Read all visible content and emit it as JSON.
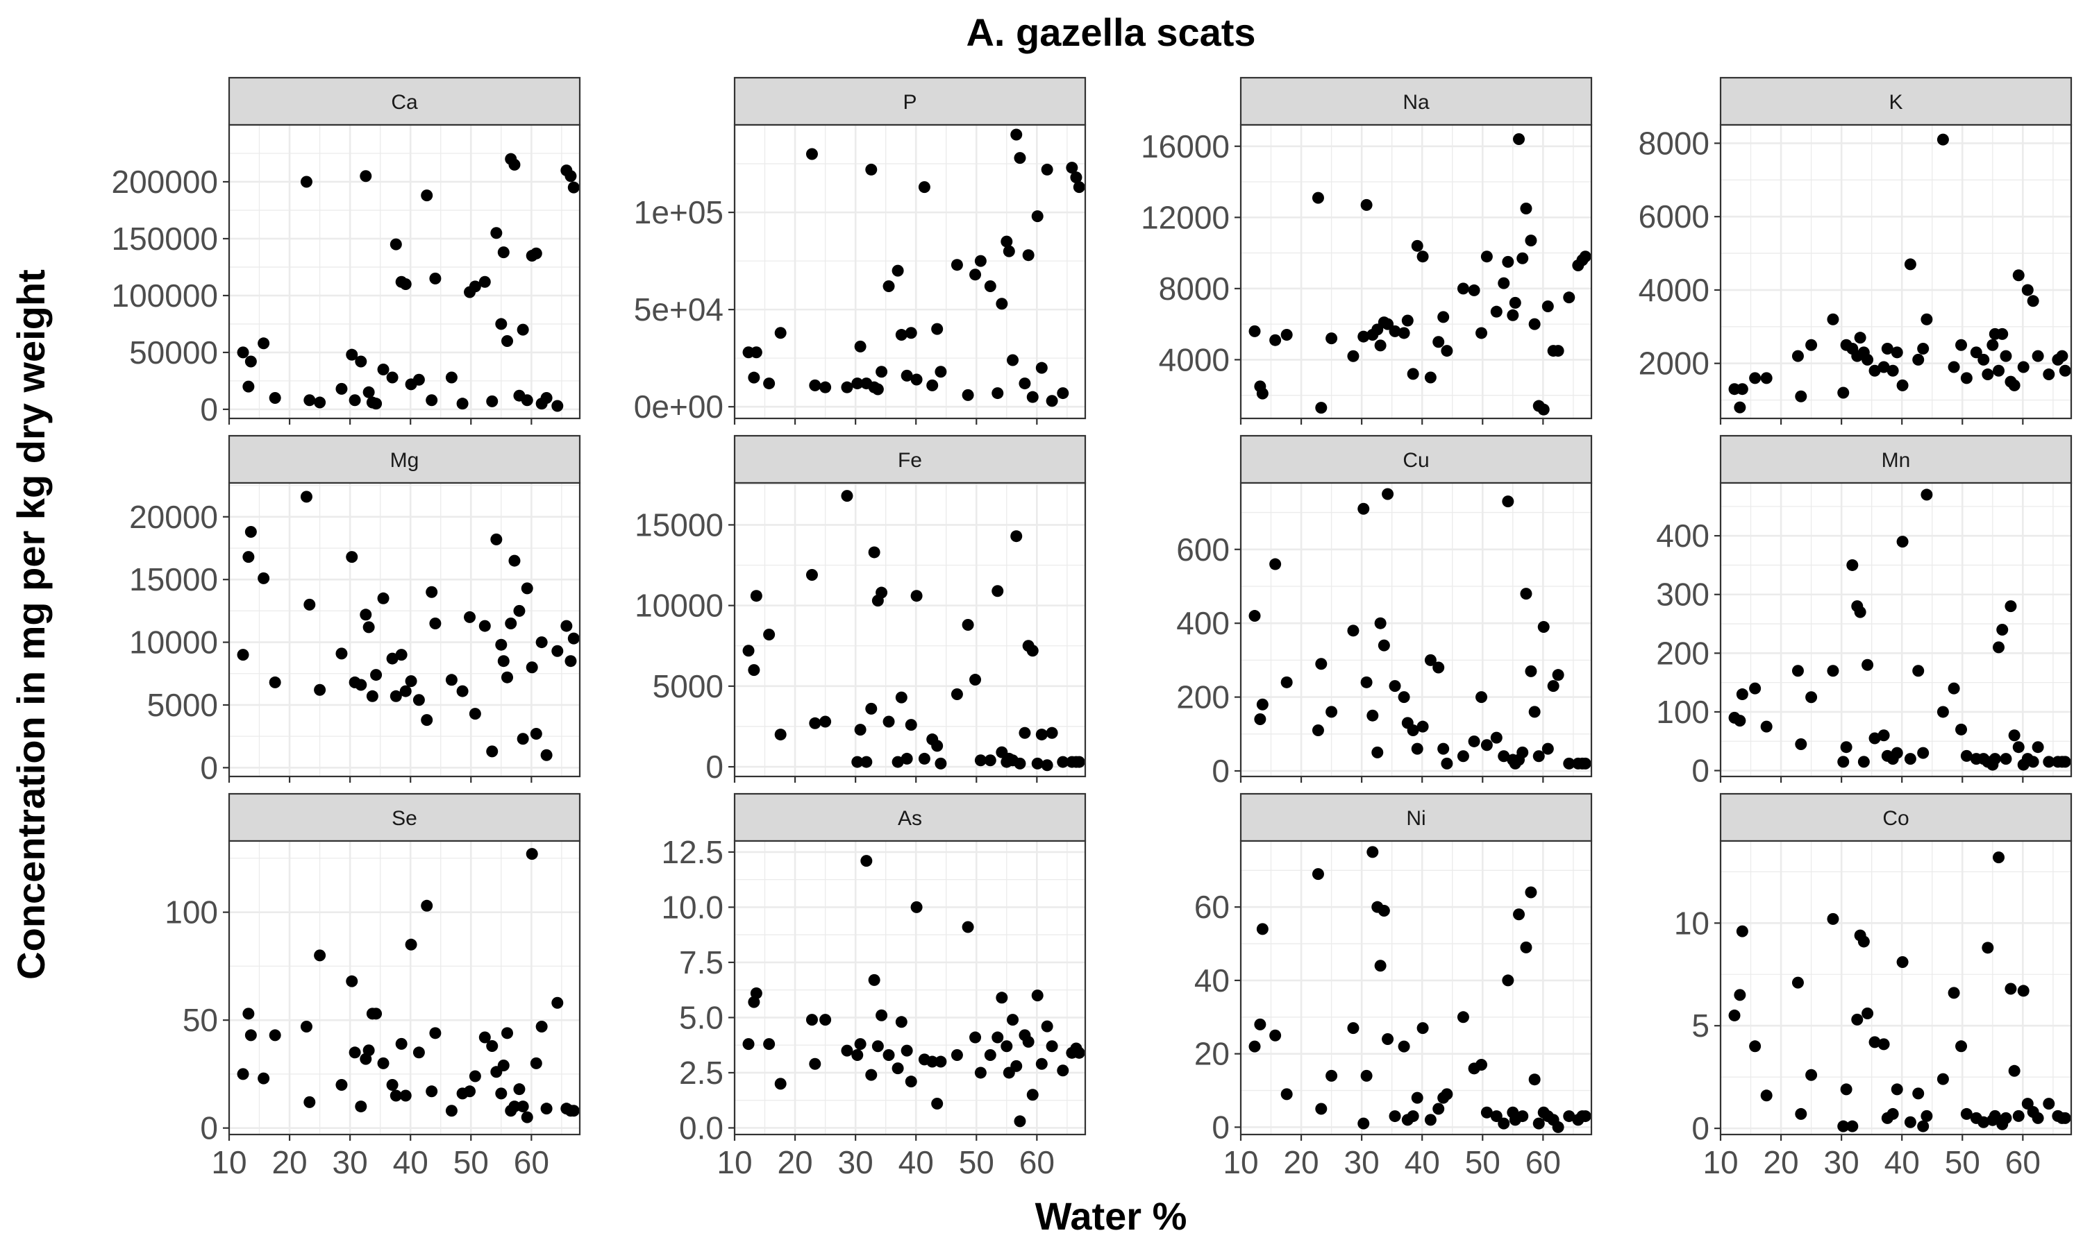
{
  "chart_data": {
    "type": "scatter",
    "title": "A. gazella scats",
    "xlabel": "Water %",
    "ylabel": "Concentration in mg per kg dry weight",
    "grid": true,
    "facet_layout": "3 rows x 4 columns, free y scales, shared x",
    "xlim": [
      10,
      68
    ],
    "x_ticks": [
      10,
      20,
      30,
      40,
      50,
      60
    ],
    "x_tick_labels": [
      "10",
      "20",
      "30",
      "40",
      "50",
      "60"
    ],
    "colors": {
      "point": "#000000",
      "strip_fill": "#d9d9d9",
      "grid": "#ebebeb",
      "panel_border": "#333333",
      "tick_text": "#4d4d4d"
    },
    "x": [
      12.3,
      13.2,
      13.6,
      15.7,
      17.6,
      22.8,
      23.3,
      25.0,
      28.6,
      30.3,
      30.8,
      31.8,
      32.6,
      33.1,
      33.7,
      34.3,
      35.5,
      37.0,
      37.6,
      38.5,
      39.2,
      40.1,
      41.4,
      42.7,
      43.5,
      44.1,
      46.8,
      48.6,
      49.8,
      50.7,
      52.3,
      53.5,
      54.2,
      55.0,
      55.4,
      56.0,
      56.6,
      57.2,
      58.0,
      58.6,
      59.3,
      60.1,
      60.8,
      61.7,
      62.5,
      64.3,
      65.8,
      66.5,
      67.0
    ],
    "panels": [
      {
        "name": "Ca",
        "ylim": [
          -8000,
          250000
        ],
        "y_ticks": [
          0,
          50000,
          100000,
          150000,
          200000
        ],
        "y_tick_labels": [
          "0",
          "50000",
          "100000",
          "150000",
          "200000"
        ],
        "y": [
          50000,
          20000,
          42000,
          58000,
          10000,
          200000,
          8000,
          6000,
          18000,
          48000,
          8000,
          42000,
          205000,
          15000,
          6000,
          5000,
          35000,
          28000,
          145000,
          112000,
          110000,
          22000,
          26000,
          188000,
          8000,
          115000,
          28000,
          5000,
          103000,
          108000,
          112000,
          7000,
          155000,
          75000,
          138000,
          60000,
          220000,
          215000,
          12000,
          70000,
          8000,
          135000,
          137000,
          5000,
          10000,
          3000,
          210000,
          205000,
          195000
        ]
      },
      {
        "name": "P",
        "ylim": [
          -6000,
          145000
        ],
        "y_ticks": [
          0,
          50000,
          100000
        ],
        "y_tick_labels": [
          "0e+00",
          "5e+04",
          "1e+05"
        ],
        "y": [
          28000,
          15000,
          28000,
          12000,
          38000,
          130000,
          11000,
          10000,
          10000,
          12000,
          31000,
          12000,
          122000,
          10000,
          9000,
          18000,
          62000,
          70000,
          37000,
          16000,
          38000,
          14000,
          113000,
          11000,
          40000,
          18000,
          73000,
          6000,
          68000,
          75000,
          62000,
          7000,
          53000,
          85000,
          80000,
          24000,
          140000,
          128000,
          12000,
          78000,
          5000,
          98000,
          20000,
          122000,
          3000,
          7000,
          123000,
          118000,
          113000
        ]
      },
      {
        "name": "Na",
        "ylim": [
          700,
          17200
        ],
        "y_ticks": [
          4000,
          8000,
          12000,
          16000
        ],
        "y_tick_labels": [
          "4000",
          "8000",
          "12000",
          "16000"
        ],
        "y": [
          5600,
          2500,
          2100,
          5100,
          5400,
          13100,
          1300,
          5200,
          4200,
          5300,
          12700,
          5400,
          5700,
          4800,
          6100,
          6000,
          5600,
          5500,
          6200,
          3200,
          10400,
          9800,
          3000,
          5000,
          6400,
          4500,
          8000,
          7900,
          5500,
          9800,
          6700,
          8300,
          9500,
          6500,
          7200,
          16400,
          9700,
          12500,
          10700,
          6000,
          1400,
          1200,
          7000,
          4500,
          4500,
          7500,
          9300,
          9600,
          9800
        ]
      },
      {
        "name": "K",
        "ylim": [
          500,
          8500
        ],
        "y_ticks": [
          2000,
          4000,
          6000,
          8000
        ],
        "y_tick_labels": [
          "2000",
          "4000",
          "6000",
          "8000"
        ],
        "y": [
          1300,
          800,
          1300,
          1600,
          1600,
          2200,
          1100,
          2500,
          3200,
          1200,
          2500,
          2400,
          2200,
          2700,
          2300,
          2100,
          1800,
          1900,
          2400,
          1800,
          2300,
          1400,
          4700,
          2100,
          2400,
          3200,
          8100,
          1900,
          2500,
          1600,
          2300,
          2100,
          1700,
          2500,
          2800,
          1800,
          2800,
          2200,
          1500,
          1400,
          4400,
          1900,
          4000,
          3700,
          2200,
          1700,
          2100,
          2200,
          1800
        ]
      },
      {
        "name": "Mg",
        "ylim": [
          -700,
          22700
        ],
        "y_ticks": [
          0,
          5000,
          10000,
          15000,
          20000
        ],
        "y_tick_labels": [
          "0",
          "5000",
          "10000",
          "15000",
          "20000"
        ],
        "y": [
          9000,
          16800,
          18800,
          15100,
          6800,
          21600,
          13000,
          6200,
          9100,
          16800,
          6800,
          6600,
          12200,
          11200,
          5700,
          7400,
          13500,
          8700,
          5700,
          9000,
          6100,
          6900,
          5400,
          3800,
          14000,
          11500,
          7000,
          6100,
          12000,
          4300,
          11300,
          1300,
          18200,
          9800,
          8500,
          7200,
          11500,
          16500,
          12500,
          2300,
          14300,
          8000,
          2700,
          10000,
          1000,
          9300,
          11300,
          8500,
          10300
        ]
      },
      {
        "name": "Fe",
        "ylim": [
          -600,
          17600
        ],
        "y_ticks": [
          0,
          5000,
          10000,
          15000
        ],
        "y_tick_labels": [
          "0",
          "5000",
          "10000",
          "15000"
        ],
        "y": [
          7200,
          6000,
          10600,
          8200,
          2000,
          11900,
          2700,
          2800,
          16800,
          300,
          2300,
          300,
          3600,
          13300,
          10300,
          10800,
          2800,
          300,
          4300,
          500,
          2600,
          10600,
          500,
          1700,
          1300,
          200,
          4500,
          8800,
          5400,
          400,
          400,
          10900,
          900,
          300,
          500,
          400,
          14300,
          200,
          2100,
          7500,
          7200,
          200,
          2000,
          100,
          2100,
          300,
          300,
          300,
          300
        ]
      },
      {
        "name": "Cu",
        "ylim": [
          -15,
          780
        ],
        "y_ticks": [
          0,
          200,
          400,
          600
        ],
        "y_tick_labels": [
          "0",
          "200",
          "400",
          "600"
        ],
        "y": [
          420,
          140,
          180,
          560,
          240,
          110,
          290,
          160,
          380,
          710,
          240,
          150,
          50,
          400,
          340,
          750,
          230,
          200,
          130,
          110,
          60,
          120,
          300,
          280,
          60,
          20,
          40,
          80,
          200,
          70,
          90,
          40,
          730,
          30,
          20,
          30,
          50,
          480,
          270,
          160,
          40,
          390,
          60,
          230,
          260,
          20,
          20,
          20,
          20
        ]
      },
      {
        "name": "Mn",
        "ylim": [
          -10,
          490
        ],
        "y_ticks": [
          0,
          100,
          200,
          300,
          400
        ],
        "y_tick_labels": [
          "0",
          "100",
          "200",
          "300",
          "400"
        ],
        "y": [
          90,
          85,
          130,
          140,
          75,
          170,
          45,
          125,
          170,
          15,
          40,
          350,
          280,
          270,
          15,
          180,
          55,
          60,
          25,
          20,
          30,
          390,
          20,
          170,
          30,
          470,
          100,
          140,
          70,
          25,
          20,
          20,
          15,
          10,
          20,
          210,
          240,
          20,
          280,
          60,
          40,
          10,
          20,
          15,
          40,
          15,
          15,
          15,
          15
        ]
      },
      {
        "name": "Se",
        "ylim": [
          -3,
          133
        ],
        "y_ticks": [
          0,
          50,
          100
        ],
        "y_tick_labels": [
          "0",
          "50",
          "100"
        ],
        "y": [
          25,
          53,
          43,
          23,
          43,
          47,
          12,
          80,
          20,
          68,
          35,
          10,
          32,
          36,
          53,
          53,
          30,
          20,
          15,
          39,
          15,
          85,
          35,
          103,
          17,
          44,
          8,
          16,
          17,
          24,
          42,
          38,
          26,
          16,
          29,
          44,
          8,
          10,
          18,
          10,
          5,
          127,
          30,
          47,
          9,
          58,
          9,
          8,
          8
        ]
      },
      {
        "name": "As",
        "ylim": [
          -0.3,
          13.0
        ],
        "y_ticks": [
          0.0,
          2.5,
          5.0,
          7.5,
          10.0,
          12.5
        ],
        "y_tick_labels": [
          "0.0",
          "2.5",
          "5.0",
          "7.5",
          "10.0",
          "12.5"
        ],
        "y": [
          3.8,
          5.7,
          6.1,
          3.8,
          2.0,
          4.9,
          2.9,
          4.9,
          3.5,
          3.3,
          3.8,
          12.1,
          2.4,
          6.7,
          3.7,
          5.1,
          3.3,
          2.7,
          4.8,
          3.5,
          2.1,
          10.0,
          3.1,
          3.0,
          1.1,
          3.0,
          3.3,
          9.1,
          4.1,
          2.5,
          3.3,
          4.1,
          5.9,
          3.7,
          2.5,
          4.9,
          2.8,
          0.3,
          4.2,
          3.9,
          1.5,
          6.0,
          2.9,
          4.6,
          3.7,
          2.6,
          3.4,
          3.6,
          3.4
        ]
      },
      {
        "name": "Ni",
        "ylim": [
          -2,
          78
        ],
        "y_ticks": [
          0,
          20,
          40,
          60
        ],
        "y_tick_labels": [
          "0",
          "20",
          "40",
          "60"
        ],
        "y": [
          22,
          28,
          54,
          25,
          9,
          69,
          5,
          14,
          27,
          1,
          14,
          75,
          60,
          44,
          59,
          24,
          3,
          22,
          2,
          3,
          8,
          27,
          2,
          5,
          8,
          9,
          30,
          16,
          17,
          4,
          3,
          1,
          40,
          4,
          2,
          58,
          3,
          49,
          64,
          13,
          1,
          4,
          3,
          2,
          0,
          3,
          2,
          3,
          3
        ]
      },
      {
        "name": "Co",
        "ylim": [
          -0.3,
          14.0
        ],
        "y_ticks": [
          0,
          5,
          10
        ],
        "y_tick_labels": [
          "0",
          "5",
          "10"
        ],
        "y": [
          5.5,
          6.5,
          9.6,
          4.0,
          1.6,
          7.1,
          0.7,
          2.6,
          10.2,
          0.1,
          1.9,
          0.1,
          5.3,
          9.4,
          9.1,
          5.6,
          4.2,
          4.1,
          0.5,
          0.7,
          1.9,
          8.1,
          0.3,
          1.7,
          0.1,
          0.6,
          2.4,
          6.6,
          4.0,
          0.7,
          0.5,
          0.3,
          8.8,
          0.4,
          0.6,
          13.2,
          0.2,
          0.5,
          6.8,
          2.8,
          0.6,
          6.7,
          1.2,
          0.8,
          0.5,
          1.2,
          0.6,
          0.5,
          0.5
        ]
      }
    ]
  }
}
